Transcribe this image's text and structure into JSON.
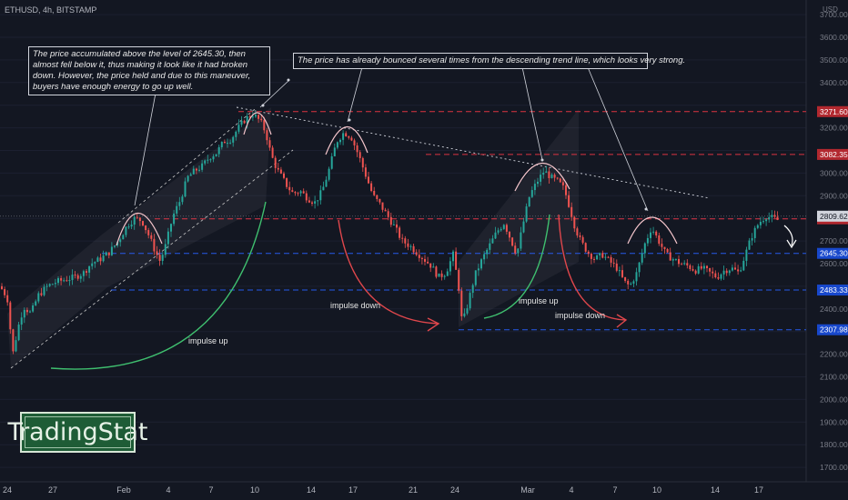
{
  "header": {
    "symbol": "ETHUSD, 4h, BITSTAMP",
    "currency": "USD"
  },
  "annotations": {
    "note_left": "The price accumulated above the level of 2645.30, then almost fell below it, thus making it look like it had broken down. However, the price held and due to this maneuver, buyers have enough energy to go up well.",
    "note_top": "The price has already bounced several times from the descending trend line, which looks very strong.",
    "impulse_up_1": "impulse up",
    "impulse_down_1": "impulse down",
    "impulse_up_2": "impulse up",
    "impulse_down_2": "impulse down"
  },
  "logo": {
    "text": "TradingStat"
  },
  "colors": {
    "background": "#131722",
    "bull": "#26a69a",
    "bear": "#ef5350",
    "resistance": "#f23645",
    "support": "#2962ff",
    "impulse_up_curve": "#3fbf6f",
    "impulse_down_curve": "#e0474c",
    "top_arc": "#f5c6cc"
  },
  "chart_data": {
    "type": "candlestick",
    "ylim": [
      1650,
      3750
    ],
    "y_ticks": [
      1700,
      1800,
      1900,
      2000,
      2100,
      2200,
      2300,
      2400,
      2500,
      2600,
      2700,
      2800,
      2900,
      3000,
      3100,
      3200,
      3300,
      3400,
      3500,
      3600,
      3700
    ],
    "x_ticks": [
      "24",
      "27",
      "Feb",
      "4",
      "7",
      "10",
      "14",
      "17",
      "21",
      "24",
      "Mar",
      "4",
      "7",
      "10",
      "14",
      "17"
    ],
    "current_price": 2809.62,
    "levels": [
      {
        "value": 3271.6,
        "kind": "resistance",
        "label": "3271.60"
      },
      {
        "value": 3082.35,
        "kind": "resistance",
        "label": "3082.35"
      },
      {
        "value": 2797.9,
        "kind": "resistance",
        "label": "2797.90"
      },
      {
        "value": 2645.3,
        "kind": "support",
        "label": "2645.30"
      },
      {
        "value": 2483.33,
        "kind": "support",
        "label": "2483.33"
      },
      {
        "value": 2307.98,
        "kind": "support",
        "label": "2307.98"
      }
    ],
    "close_path": [
      [
        0,
        2500
      ],
      [
        8,
        2450
      ],
      [
        14,
        2200
      ],
      [
        20,
        2320
      ],
      [
        26,
        2410
      ],
      [
        34,
        2380
      ],
      [
        42,
        2460
      ],
      [
        52,
        2500
      ],
      [
        62,
        2520
      ],
      [
        72,
        2530
      ],
      [
        82,
        2540
      ],
      [
        92,
        2560
      ],
      [
        100,
        2600
      ],
      [
        110,
        2620
      ],
      [
        120,
        2650
      ],
      [
        130,
        2700
      ],
      [
        140,
        2770
      ],
      [
        148,
        2800
      ],
      [
        156,
        2790
      ],
      [
        164,
        2720
      ],
      [
        170,
        2660
      ],
      [
        176,
        2610
      ],
      [
        182,
        2680
      ],
      [
        190,
        2810
      ],
      [
        198,
        2880
      ],
      [
        206,
        2980
      ],
      [
        214,
        3010
      ],
      [
        222,
        3030
      ],
      [
        230,
        3070
      ],
      [
        238,
        3090
      ],
      [
        246,
        3140
      ],
      [
        254,
        3150
      ],
      [
        262,
        3200
      ],
      [
        270,
        3240
      ],
      [
        278,
        3260
      ],
      [
        286,
        3230
      ],
      [
        292,
        3180
      ],
      [
        298,
        3080
      ],
      [
        304,
        3020
      ],
      [
        310,
        2980
      ],
      [
        316,
        2940
      ],
      [
        322,
        2910
      ],
      [
        330,
        2920
      ],
      [
        338,
        2890
      ],
      [
        346,
        2870
      ],
      [
        354,
        2920
      ],
      [
        362,
        3020
      ],
      [
        370,
        3140
      ],
      [
        378,
        3180
      ],
      [
        386,
        3160
      ],
      [
        394,
        3080
      ],
      [
        402,
        2990
      ],
      [
        410,
        2900
      ],
      [
        418,
        2860
      ],
      [
        426,
        2810
      ],
      [
        434,
        2760
      ],
      [
        442,
        2700
      ],
      [
        450,
        2680
      ],
      [
        458,
        2650
      ],
      [
        466,
        2620
      ],
      [
        474,
        2590
      ],
      [
        482,
        2540
      ],
      [
        490,
        2560
      ],
      [
        498,
        2640
      ],
      [
        504,
        2500
      ],
      [
        508,
        2330
      ],
      [
        514,
        2420
      ],
      [
        522,
        2550
      ],
      [
        530,
        2620
      ],
      [
        538,
        2680
      ],
      [
        546,
        2740
      ],
      [
        554,
        2780
      ],
      [
        562,
        2700
      ],
      [
        568,
        2640
      ],
      [
        574,
        2760
      ],
      [
        582,
        2900
      ],
      [
        590,
        2960
      ],
      [
        598,
        3010
      ],
      [
        606,
        2980
      ],
      [
        614,
        2960
      ],
      [
        620,
        2930
      ],
      [
        626,
        2850
      ],
      [
        632,
        2760
      ],
      [
        638,
        2700
      ],
      [
        646,
        2650
      ],
      [
        654,
        2620
      ],
      [
        662,
        2640
      ],
      [
        670,
        2610
      ],
      [
        678,
        2580
      ],
      [
        686,
        2520
      ],
      [
        692,
        2500
      ],
      [
        700,
        2560
      ],
      [
        708,
        2680
      ],
      [
        716,
        2760
      ],
      [
        724,
        2700
      ],
      [
        732,
        2640
      ],
      [
        740,
        2620
      ],
      [
        748,
        2600
      ],
      [
        756,
        2590
      ],
      [
        764,
        2570
      ],
      [
        772,
        2580
      ],
      [
        780,
        2560
      ],
      [
        788,
        2540
      ],
      [
        796,
        2570
      ],
      [
        804,
        2580
      ],
      [
        812,
        2560
      ],
      [
        820,
        2650
      ],
      [
        826,
        2720
      ],
      [
        834,
        2780
      ],
      [
        842,
        2810
      ],
      [
        850,
        2800
      ],
      [
        856,
        2790
      ]
    ]
  }
}
